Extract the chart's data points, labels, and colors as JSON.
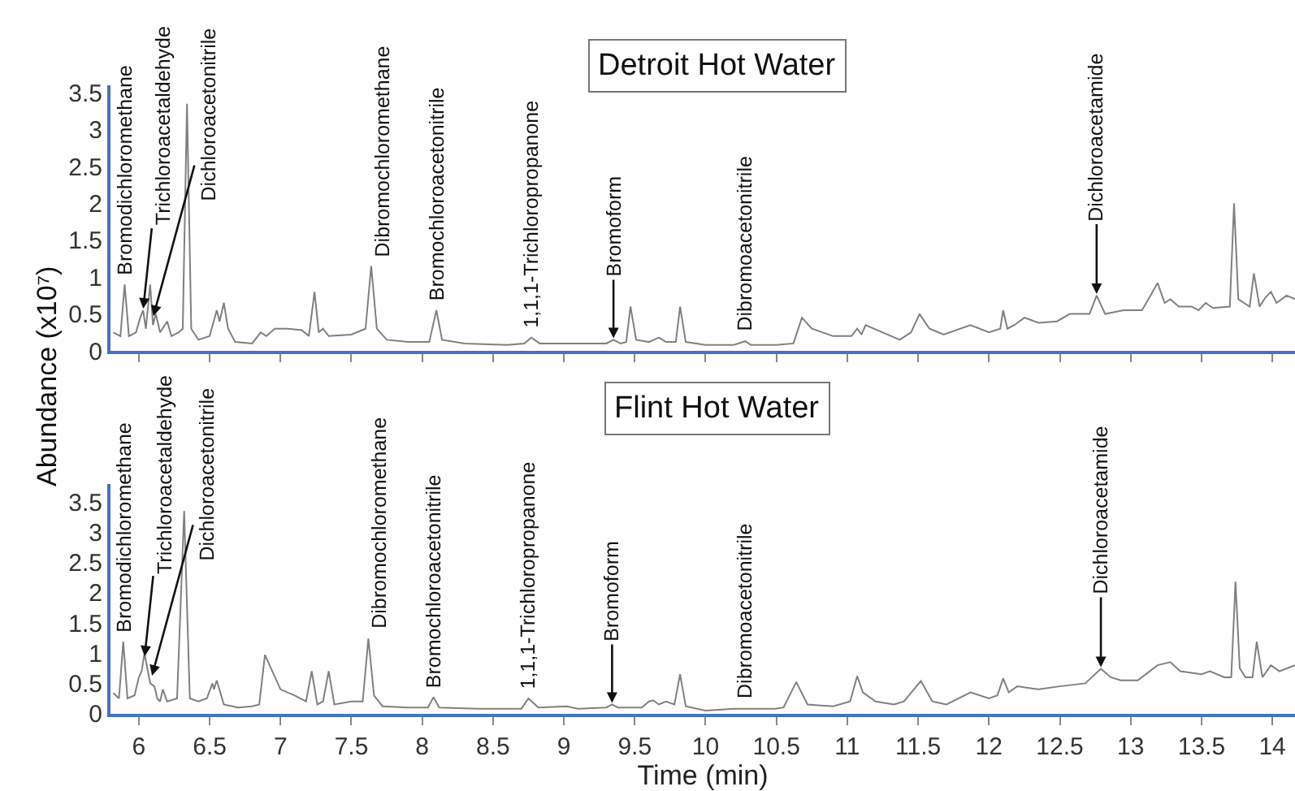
{
  "chart_data": [
    {
      "type": "line",
      "title": "Detroit Hot Water",
      "ylabel": "Abundance (x10⁷)",
      "xlim": [
        5.8,
        14.16
      ],
      "ylim": [
        0,
        3.6
      ],
      "xticks": [
        6,
        6.5,
        7,
        7.5,
        8,
        8.5,
        9,
        9.5,
        10,
        10.5,
        11,
        11.5,
        12,
        12.5,
        13,
        13.5,
        14
      ],
      "yticks": [
        0,
        0.5,
        1,
        1.5,
        2,
        2.5,
        3,
        3.5
      ],
      "tick_labels": "y",
      "marker": "none",
      "line_style": "solid",
      "series": [
        {
          "color": "#808080",
          "x": [
            5.82,
            5.87,
            5.9,
            5.93,
            5.98,
            6.01,
            6.03,
            6.05,
            6.08,
            6.1,
            6.12,
            6.15,
            6.2,
            6.23,
            6.28,
            6.31,
            6.34,
            6.37,
            6.42,
            6.5,
            6.55,
            6.57,
            6.6,
            6.63,
            6.68,
            6.8,
            6.86,
            6.9,
            6.96,
            7.05,
            7.15,
            7.2,
            7.24,
            7.27,
            7.3,
            7.34,
            7.5,
            7.6,
            7.64,
            7.68,
            7.75,
            7.9,
            8.05,
            8.1,
            8.14,
            8.3,
            8.6,
            8.72,
            8.77,
            8.83,
            9.1,
            9.3,
            9.35,
            9.4,
            9.44,
            9.47,
            9.51,
            9.6,
            9.67,
            9.72,
            9.79,
            9.82,
            9.86,
            10.0,
            10.2,
            10.28,
            10.32,
            10.5,
            10.62,
            10.68,
            10.75,
            10.9,
            11.03,
            11.07,
            11.1,
            11.13,
            11.25,
            11.37,
            11.45,
            11.51,
            11.58,
            11.68,
            11.87,
            12.0,
            12.08,
            12.1,
            12.13,
            12.18,
            12.25,
            12.35,
            12.48,
            12.57,
            12.71,
            12.76,
            12.82,
            12.95,
            13.08,
            13.14,
            13.19,
            13.24,
            13.28,
            13.34,
            13.43,
            13.48,
            13.53,
            13.58,
            13.7,
            13.73,
            13.76,
            13.8,
            13.84,
            13.87,
            13.91,
            13.95,
            13.99,
            14.03,
            14.1,
            14.16
          ],
          "values": [
            0.25,
            0.2,
            0.9,
            0.2,
            0.25,
            0.45,
            0.55,
            0.3,
            0.9,
            0.35,
            0.5,
            0.25,
            0.4,
            0.2,
            0.25,
            0.3,
            3.35,
            0.3,
            0.15,
            0.2,
            0.55,
            0.4,
            0.65,
            0.3,
            0.12,
            0.1,
            0.25,
            0.2,
            0.3,
            0.3,
            0.28,
            0.2,
            0.8,
            0.25,
            0.3,
            0.2,
            0.22,
            0.3,
            1.15,
            0.3,
            0.15,
            0.12,
            0.12,
            0.55,
            0.15,
            0.1,
            0.08,
            0.1,
            0.18,
            0.1,
            0.1,
            0.1,
            0.15,
            0.1,
            0.12,
            0.6,
            0.15,
            0.12,
            0.18,
            0.12,
            0.12,
            0.6,
            0.12,
            0.08,
            0.08,
            0.13,
            0.08,
            0.08,
            0.1,
            0.45,
            0.3,
            0.2,
            0.2,
            0.3,
            0.22,
            0.35,
            0.25,
            0.15,
            0.25,
            0.5,
            0.3,
            0.22,
            0.35,
            0.25,
            0.3,
            0.55,
            0.3,
            0.35,
            0.45,
            0.38,
            0.4,
            0.5,
            0.5,
            0.75,
            0.5,
            0.55,
            0.55,
            0.75,
            0.92,
            0.65,
            0.7,
            0.6,
            0.6,
            0.55,
            0.65,
            0.58,
            0.6,
            2.0,
            0.7,
            0.65,
            0.6,
            1.05,
            0.6,
            0.72,
            0.8,
            0.65,
            0.75,
            0.7
          ]
        }
      ],
      "annotations": [
        {
          "text": "Bromodichloromethane",
          "x": 5.9,
          "y": 0.9
        },
        {
          "text": "Trichloroacetaldehyde",
          "x": 6.03,
          "y": 0.55
        },
        {
          "text": "Dichloroacetonitrile",
          "x": 6.1,
          "y": 0.45
        },
        {
          "text": "Dibromochloromethane",
          "x": 7.64,
          "y": 1.15
        },
        {
          "text": "Bromochloroacetonitrile",
          "x": 8.1,
          "y": 0.55
        },
        {
          "text": "1,1,1-Trichloropropanone",
          "x": 8.77,
          "y": 0.18
        },
        {
          "text": "Bromoform",
          "x": 9.35,
          "y": 0.15
        },
        {
          "text": "Dibromoacetonitrile",
          "x": 10.28,
          "y": 0.13
        },
        {
          "text": "Dichloroacetamide",
          "x": 12.76,
          "y": 0.75
        }
      ]
    },
    {
      "type": "line",
      "title": "Flint Hot Water",
      "xlabel": "Time (min)",
      "xlim": [
        5.8,
        14.16
      ],
      "ylim": [
        0,
        3.8
      ],
      "xticks": [
        6,
        6.5,
        7,
        7.5,
        8,
        8.5,
        9,
        9.5,
        10,
        10.5,
        11,
        11.5,
        12,
        12.5,
        13,
        13.5,
        14
      ],
      "yticks": [
        0,
        0.5,
        1,
        1.5,
        2,
        2.5,
        3,
        3.5
      ],
      "marker": "none",
      "line_style": "solid",
      "series": [
        {
          "color": "#808080",
          "x": [
            5.82,
            5.86,
            5.89,
            5.92,
            5.97,
            6.0,
            6.02,
            6.04,
            6.08,
            6.11,
            6.13,
            6.15,
            6.17,
            6.2,
            6.27,
            6.32,
            6.36,
            6.42,
            6.48,
            6.52,
            6.53,
            6.55,
            6.6,
            6.7,
            6.8,
            6.85,
            6.89,
            7.0,
            7.1,
            7.18,
            7.22,
            7.26,
            7.3,
            7.34,
            7.38,
            7.5,
            7.58,
            7.62,
            7.66,
            7.72,
            7.9,
            8.04,
            8.08,
            8.12,
            8.4,
            8.7,
            8.75,
            8.82,
            9.02,
            9.1,
            9.3,
            9.34,
            9.38,
            9.55,
            9.6,
            9.63,
            9.67,
            9.72,
            9.78,
            9.82,
            9.86,
            10.0,
            10.2,
            10.28,
            10.35,
            10.49,
            10.55,
            10.64,
            10.72,
            10.9,
            11.02,
            11.07,
            11.11,
            11.2,
            11.33,
            11.4,
            11.52,
            11.6,
            11.7,
            11.87,
            12.0,
            12.06,
            12.1,
            12.14,
            12.2,
            12.35,
            12.5,
            12.68,
            12.79,
            12.86,
            12.93,
            13.05,
            13.19,
            13.28,
            13.35,
            13.5,
            13.56,
            13.66,
            13.71,
            13.74,
            13.77,
            13.81,
            13.86,
            13.89,
            13.93,
            13.99,
            14.05,
            14.16
          ],
          "values": [
            0.34,
            0.25,
            1.19,
            0.25,
            0.3,
            0.6,
            0.7,
            1.0,
            0.5,
            0.45,
            0.25,
            0.2,
            0.4,
            0.2,
            0.25,
            3.35,
            0.25,
            0.2,
            0.25,
            0.5,
            0.4,
            0.55,
            0.15,
            0.1,
            0.12,
            0.15,
            0.97,
            0.4,
            0.3,
            0.2,
            0.7,
            0.15,
            0.2,
            0.7,
            0.15,
            0.2,
            0.2,
            1.24,
            0.3,
            0.12,
            0.1,
            0.1,
            0.27,
            0.1,
            0.08,
            0.08,
            0.25,
            0.1,
            0.12,
            0.08,
            0.1,
            0.15,
            0.1,
            0.1,
            0.2,
            0.22,
            0.15,
            0.2,
            0.15,
            0.65,
            0.12,
            0.05,
            0.08,
            0.08,
            0.08,
            0.08,
            0.1,
            0.52,
            0.15,
            0.12,
            0.2,
            0.62,
            0.35,
            0.2,
            0.15,
            0.2,
            0.54,
            0.2,
            0.15,
            0.35,
            0.25,
            0.3,
            0.58,
            0.35,
            0.45,
            0.4,
            0.45,
            0.5,
            0.74,
            0.6,
            0.55,
            0.55,
            0.8,
            0.85,
            0.7,
            0.65,
            0.7,
            0.6,
            0.6,
            2.18,
            0.75,
            0.6,
            0.6,
            1.19,
            0.6,
            0.8,
            0.7,
            0.8
          ]
        }
      ],
      "annotations": [
        {
          "text": "Bromodichloromethane",
          "x": 5.89,
          "y": 1.19
        },
        {
          "text": "Trichloroacetaldehyde",
          "x": 6.04,
          "y": 0.92
        },
        {
          "text": "Dichloroacetonitrile",
          "x": 6.09,
          "y": 0.6
        },
        {
          "text": "Dibromochloromethane",
          "x": 7.62,
          "y": 1.24
        },
        {
          "text": "Bromochloroacetonitrile",
          "x": 8.08,
          "y": 0.27
        },
        {
          "text": "1,1,1-Trichloropropanone",
          "x": 8.75,
          "y": 0.25
        },
        {
          "text": "Bromoform",
          "x": 9.34,
          "y": 0.15
        },
        {
          "text": "Dibromoacetonitrile",
          "x": 10.28,
          "y": 0.08
        },
        {
          "text": "Dichloroacetamide",
          "x": 12.79,
          "y": 0.74
        }
      ]
    }
  ]
}
